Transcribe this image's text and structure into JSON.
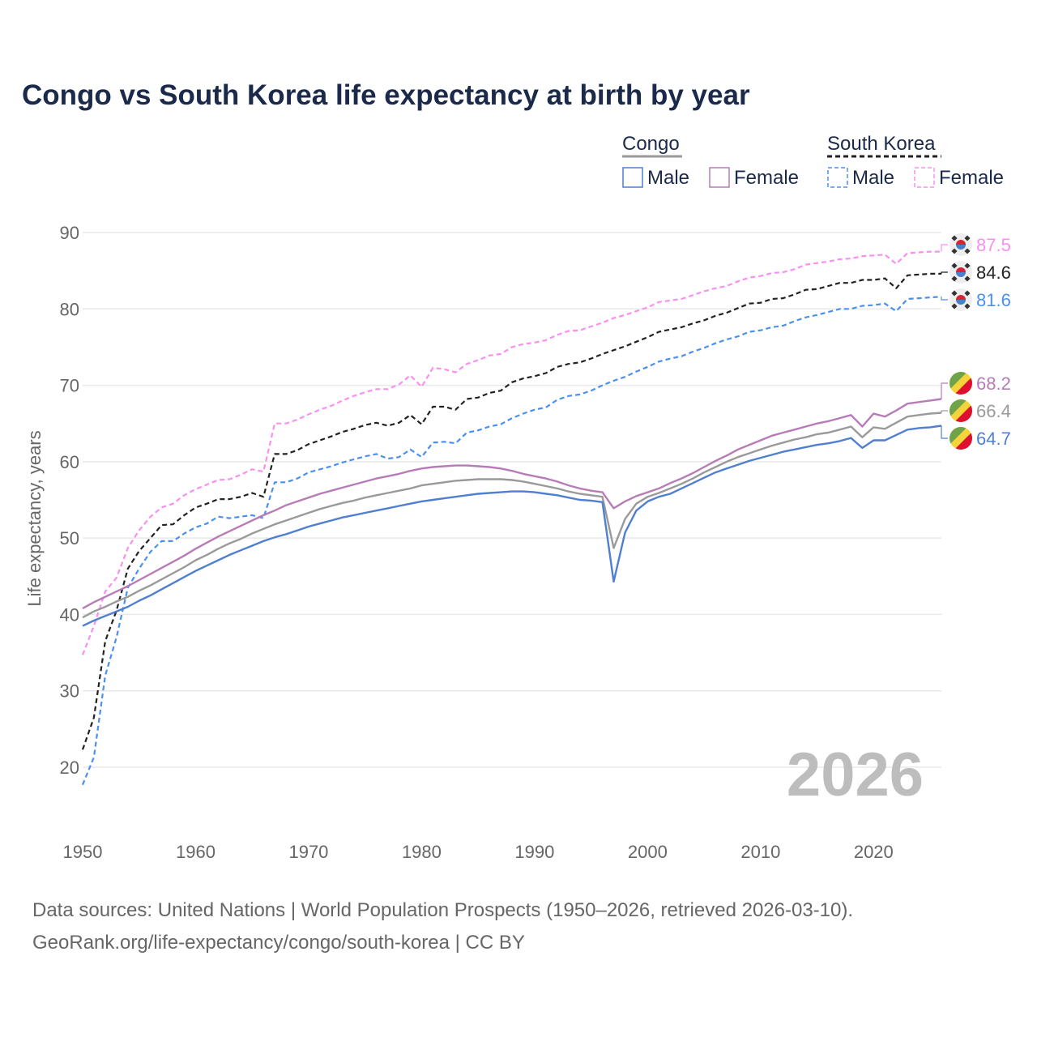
{
  "chart_data": {
    "type": "line",
    "title": "Congo vs South Korea life expectancy at birth by year",
    "xlabel": "",
    "ylabel": "Life expectancy, years",
    "xlim": [
      1950,
      2026
    ],
    "ylim": [
      12,
      93
    ],
    "x_ticks": [
      1950,
      1960,
      1970,
      1980,
      1990,
      2000,
      2010,
      2020
    ],
    "y_ticks": [
      20,
      30,
      40,
      50,
      60,
      70,
      80,
      90
    ],
    "grid": true,
    "current_year_label": "2026",
    "legend": {
      "placement": "top-right",
      "groups": [
        {
          "name": "Congo",
          "entries": [
            "Male",
            "Female"
          ]
        },
        {
          "name": "South Korea",
          "entries": [
            "Male",
            "Female"
          ]
        }
      ]
    },
    "x_start": 1950,
    "series": [
      {
        "name": "South Korea Female",
        "country": "South Korea",
        "color": "#f98ff0",
        "dashed": true,
        "end_label": "87.5",
        "flag": "south-korea",
        "values": [
          34.7,
          38.5,
          43,
          44.8,
          48.7,
          51,
          52.8,
          54,
          54.5,
          55.6,
          56.4,
          57,
          57.6,
          57.7,
          58.3,
          59,
          58.7,
          65,
          65,
          65.5,
          66.2,
          66.8,
          67.3,
          68,
          68.6,
          69.1,
          69.5,
          69.5,
          70.1,
          71.3,
          69.8,
          72.3,
          72.1,
          71.7,
          72.8,
          73.3,
          73.9,
          74.1,
          75,
          75.4,
          75.6,
          75.9,
          76.6,
          77.1,
          77.2,
          77.7,
          78.2,
          78.8,
          79.2,
          79.7,
          80.2,
          80.9,
          81.1,
          81.3,
          81.8,
          82.3,
          82.7,
          83,
          83.6,
          84.1,
          84.3,
          84.7,
          84.8,
          85.2,
          85.8,
          86,
          86.2,
          86.5,
          86.6,
          86.9,
          87,
          87.1,
          85.9,
          87.3,
          87.4,
          87.5,
          87.5
        ]
      },
      {
        "name": "South Korea",
        "country": "South Korea",
        "color": "#222222",
        "dashed": true,
        "end_label": "84.6",
        "flag": "south-korea",
        "values": [
          22.3,
          26.5,
          36.5,
          40.5,
          46,
          48.3,
          50,
          51.7,
          51.8,
          53,
          54,
          54.5,
          55.1,
          55.1,
          55.4,
          55.9,
          55.4,
          61,
          61,
          61.5,
          62.3,
          62.8,
          63.3,
          63.9,
          64.3,
          64.8,
          65.1,
          64.7,
          65.1,
          66.1,
          64.9,
          67.2,
          67.2,
          66.8,
          68.2,
          68.4,
          69,
          69.3,
          70.4,
          70.9,
          71.2,
          71.6,
          72.4,
          72.8,
          73,
          73.5,
          74.1,
          74.6,
          75.1,
          75.7,
          76.3,
          77,
          77.3,
          77.6,
          78.1,
          78.5,
          79.1,
          79.5,
          80.1,
          80.7,
          80.8,
          81.3,
          81.4,
          81.9,
          82.5,
          82.6,
          83,
          83.4,
          83.4,
          83.8,
          83.8,
          84,
          82.7,
          84.4,
          84.5,
          84.6,
          84.6
        ]
      },
      {
        "name": "South Korea Male",
        "country": "South Korea",
        "color": "#4a90f0",
        "dashed": true,
        "end_label": "81.6",
        "flag": "south-korea",
        "values": [
          17.7,
          21.3,
          32,
          37,
          43.5,
          46,
          48.2,
          49.6,
          49.6,
          50.6,
          51.4,
          51.9,
          52.8,
          52.6,
          52.8,
          53,
          52.6,
          57.3,
          57.3,
          57.8,
          58.6,
          59,
          59.4,
          59.9,
          60.3,
          60.7,
          61,
          60.4,
          60.6,
          61.6,
          60.6,
          62.5,
          62.6,
          62.4,
          63.8,
          64.1,
          64.6,
          64.9,
          65.7,
          66.3,
          66.8,
          67.1,
          68.1,
          68.6,
          68.8,
          69.3,
          70,
          70.6,
          71.1,
          71.8,
          72.4,
          73.1,
          73.5,
          73.8,
          74.4,
          74.9,
          75.5,
          76,
          76.4,
          77,
          77.2,
          77.6,
          77.8,
          78.4,
          78.9,
          79.2,
          79.6,
          80,
          80,
          80.4,
          80.5,
          80.7,
          79.7,
          81.3,
          81.4,
          81.5,
          81.6
        ]
      },
      {
        "name": "Congo Female",
        "country": "Congo",
        "color": "#b77cb8",
        "dashed": false,
        "end_label": "68.2",
        "flag": "congo",
        "values": [
          40.8,
          41.6,
          42.3,
          43,
          43.7,
          44.5,
          45.3,
          46.1,
          46.9,
          47.7,
          48.6,
          49.4,
          50.2,
          50.9,
          51.6,
          52.3,
          53,
          53.6,
          54.3,
          54.8,
          55.3,
          55.8,
          56.2,
          56.6,
          57,
          57.4,
          57.8,
          58.1,
          58.4,
          58.8,
          59.1,
          59.3,
          59.4,
          59.5,
          59.5,
          59.4,
          59.3,
          59.1,
          58.8,
          58.4,
          58.1,
          57.8,
          57.4,
          56.9,
          56.5,
          56.2,
          56,
          53.9,
          54.8,
          55.5,
          56,
          56.5,
          57.2,
          57.8,
          58.5,
          59.3,
          60.1,
          60.8,
          61.6,
          62.2,
          62.8,
          63.4,
          63.8,
          64.2,
          64.6,
          65,
          65.3,
          65.7,
          66.1,
          64.6,
          66.3,
          65.9,
          66.7,
          67.6,
          67.8,
          68,
          68.2
        ]
      },
      {
        "name": "Congo",
        "country": "Congo",
        "color": "#9a9a9a",
        "dashed": false,
        "end_label": "66.4",
        "flag": "congo",
        "values": [
          39.6,
          40.4,
          41,
          41.7,
          42.3,
          43.1,
          43.8,
          44.6,
          45.4,
          46.2,
          47.1,
          47.8,
          48.6,
          49.3,
          49.9,
          50.6,
          51.2,
          51.8,
          52.3,
          52.8,
          53.3,
          53.8,
          54.2,
          54.6,
          54.9,
          55.3,
          55.6,
          55.9,
          56.2,
          56.5,
          56.9,
          57.1,
          57.3,
          57.5,
          57.6,
          57.7,
          57.7,
          57.7,
          57.6,
          57.4,
          57.1,
          56.8,
          56.5,
          56.1,
          55.8,
          55.6,
          55.4,
          48.7,
          52.5,
          54.5,
          55.4,
          55.9,
          56.5,
          57.1,
          57.8,
          58.6,
          59.3,
          60,
          60.6,
          61.1,
          61.6,
          62.1,
          62.5,
          62.9,
          63.2,
          63.6,
          63.8,
          64.2,
          64.6,
          63.2,
          64.5,
          64.3,
          65.1,
          65.9,
          66.1,
          66.3,
          66.4
        ]
      },
      {
        "name": "Congo Male",
        "country": "Congo",
        "color": "#4f7fd0",
        "dashed": false,
        "end_label": "64.7",
        "flag": "congo",
        "values": [
          38.5,
          39.2,
          39.8,
          40.4,
          41,
          41.8,
          42.5,
          43.3,
          44.1,
          44.9,
          45.7,
          46.4,
          47.1,
          47.8,
          48.4,
          49,
          49.6,
          50.1,
          50.5,
          51,
          51.5,
          51.9,
          52.3,
          52.7,
          53,
          53.3,
          53.6,
          53.9,
          54.2,
          54.5,
          54.8,
          55,
          55.2,
          55.4,
          55.6,
          55.8,
          55.9,
          56,
          56.1,
          56.1,
          56,
          55.8,
          55.6,
          55.3,
          55,
          54.9,
          54.7,
          44.3,
          50.7,
          53.6,
          54.8,
          55.4,
          55.8,
          56.5,
          57.2,
          57.9,
          58.6,
          59.1,
          59.6,
          60.1,
          60.5,
          60.9,
          61.3,
          61.6,
          61.9,
          62.2,
          62.4,
          62.7,
          63.1,
          61.8,
          62.8,
          62.8,
          63.5,
          64.2,
          64.4,
          64.5,
          64.7
        ]
      }
    ]
  },
  "footer": {
    "line1": "Data sources: United Nations | World Population Prospects (1950–2026, retrieved 2026-03-10).",
    "line2": "GeoRank.org/life-expectancy/congo/south-korea | CC BY"
  },
  "colors": {
    "title": "#1b2a4a",
    "congo_male": "#4f7fd0",
    "congo_female": "#b77cb8",
    "congo_total": "#9a9a9a",
    "korea_male": "#4a90f0",
    "korea_female": "#f98ff0",
    "korea_total": "#222222"
  }
}
